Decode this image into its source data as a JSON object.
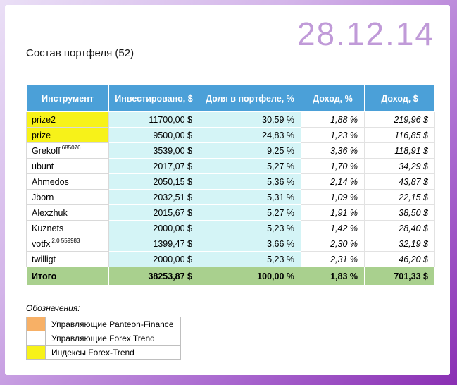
{
  "colors": {
    "header_blue": "#4BA0D8",
    "cell_cyan": "#D4F4F6",
    "total_green": "#A9D08E",
    "highlight_yellow": "#F7F219",
    "date_purple": "#C09AD8"
  },
  "header": {
    "date": "28.12.14",
    "title": "Состав портфеля (52)"
  },
  "table": {
    "headers": [
      "Инструмент",
      "Инвестировано, $",
      "Доля в портфеле, %",
      "Доход, %",
      "Доход, $"
    ],
    "rows": [
      {
        "name": "prize2",
        "sup": "",
        "invested": "11700,00 $",
        "share": "30,59 %",
        "profit_pct": "1,88 %",
        "profit_usd": "219,96 $",
        "highlight": true
      },
      {
        "name": "prize",
        "sup": "",
        "invested": "9500,00 $",
        "share": "24,83 %",
        "profit_pct": "1,23 %",
        "profit_usd": "116,85 $",
        "highlight": true
      },
      {
        "name": "Grekoff",
        "sup": "685076",
        "invested": "3539,00 $",
        "share": "9,25 %",
        "profit_pct": "3,36 %",
        "profit_usd": "118,91 $",
        "highlight": false
      },
      {
        "name": "ubunt",
        "sup": "",
        "invested": "2017,07 $",
        "share": "5,27 %",
        "profit_pct": "1,70 %",
        "profit_usd": "34,29 $",
        "highlight": false
      },
      {
        "name": "Ahmedos",
        "sup": "",
        "invested": "2050,15 $",
        "share": "5,36 %",
        "profit_pct": "2,14 %",
        "profit_usd": "43,87 $",
        "highlight": false
      },
      {
        "name": "Jborn",
        "sup": "",
        "invested": "2032,51 $",
        "share": "5,31 %",
        "profit_pct": "1,09 %",
        "profit_usd": "22,15 $",
        "highlight": false
      },
      {
        "name": "Alexzhuk",
        "sup": "",
        "invested": "2015,67 $",
        "share": "5,27 %",
        "profit_pct": "1,91 %",
        "profit_usd": "38,50 $",
        "highlight": false
      },
      {
        "name": "Kuznets",
        "sup": "",
        "invested": "2000,00 $",
        "share": "5,23 %",
        "profit_pct": "1,42 %",
        "profit_usd": "28,40 $",
        "highlight": false
      },
      {
        "name": "votfx",
        "sup": "2.0 559983",
        "invested": "1399,47 $",
        "share": "3,66 %",
        "profit_pct": "2,30 %",
        "profit_usd": "32,19 $",
        "highlight": false
      },
      {
        "name": "twilligt",
        "sup": "",
        "invested": "2000,00 $",
        "share": "5,23 %",
        "profit_pct": "2,31 %",
        "profit_usd": "46,20 $",
        "highlight": false
      }
    ],
    "total": {
      "label": "Итого",
      "invested": "38253,87 $",
      "share": "100,00 %",
      "profit_pct": "1,83 %",
      "profit_usd": "701,33 $"
    }
  },
  "legend": {
    "title": "Обозначения:",
    "items": [
      {
        "label": "Управляющие Panteon-Finance",
        "color": "#F7B066"
      },
      {
        "label": "Управляющие Forex Trend",
        "color": "#FFFFFF"
      },
      {
        "label": "Индексы Forex-Trend",
        "color": "#F7F219"
      }
    ]
  },
  "chart_data": {
    "type": "table",
    "title": "Состав портфеля (52)",
    "date": "28.12.14",
    "columns": [
      "Инструмент",
      "Инвестировано, $",
      "Доля в портфеле, %",
      "Доход, %",
      "Доход, $"
    ],
    "rows": [
      [
        "prize2",
        11700.0,
        30.59,
        1.88,
        219.96
      ],
      [
        "prize",
        9500.0,
        24.83,
        1.23,
        116.85
      ],
      [
        "Grekoff 685076",
        3539.0,
        9.25,
        3.36,
        118.91
      ],
      [
        "ubunt",
        2017.07,
        5.27,
        1.7,
        34.29
      ],
      [
        "Ahmedos",
        2050.15,
        5.36,
        2.14,
        43.87
      ],
      [
        "Jborn",
        2032.51,
        5.31,
        1.09,
        22.15
      ],
      [
        "Alexzhuk",
        2015.67,
        5.27,
        1.91,
        38.5
      ],
      [
        "Kuznets",
        2000.0,
        5.23,
        1.42,
        28.4
      ],
      [
        "votfx 2.0 559983",
        1399.47,
        3.66,
        2.3,
        32.19
      ],
      [
        "twilligt",
        2000.0,
        5.23,
        2.31,
        46.2
      ]
    ],
    "total": [
      "Итого",
      38253.87,
      100.0,
      1.83,
      701.33
    ]
  }
}
